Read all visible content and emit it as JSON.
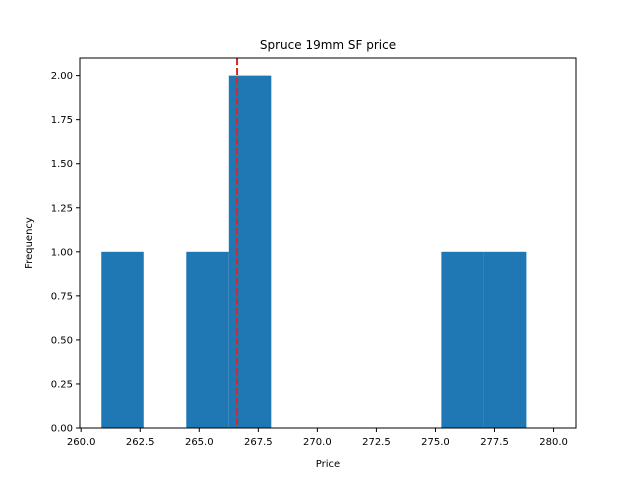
{
  "chart_data": {
    "type": "bar",
    "title": "Spruce 19mm SF price",
    "xlabel": "Price",
    "ylabel": "Frequency",
    "xlim": [
      259.95,
      280.95
    ],
    "ylim": [
      0,
      2.1
    ],
    "bins": [
      {
        "x0": 260.85,
        "x1": 262.65,
        "count": 1
      },
      {
        "x0": 262.65,
        "x1": 264.45,
        "count": 0
      },
      {
        "x0": 264.45,
        "x1": 266.25,
        "count": 1
      },
      {
        "x0": 266.25,
        "x1": 268.05,
        "count": 2
      },
      {
        "x0": 268.05,
        "x1": 269.85,
        "count": 0
      },
      {
        "x0": 269.85,
        "x1": 271.65,
        "count": 0
      },
      {
        "x0": 271.65,
        "x1": 273.45,
        "count": 0
      },
      {
        "x0": 273.45,
        "x1": 275.25,
        "count": 0
      },
      {
        "x0": 275.25,
        "x1": 277.05,
        "count": 1
      },
      {
        "x0": 277.05,
        "x1": 278.85,
        "count": 1
      }
    ],
    "xticks": [
      260.0,
      262.5,
      265.0,
      267.5,
      270.0,
      272.5,
      275.0,
      277.5,
      280.0
    ],
    "xtick_labels": [
      "260.0",
      "262.5",
      "265.0",
      "267.5",
      "270.0",
      "272.5",
      "275.0",
      "277.5",
      "280.0"
    ],
    "yticks": [
      0,
      0.25,
      0.5,
      0.75,
      1.0,
      1.25,
      1.5,
      1.75,
      2.0
    ],
    "ytick_labels": [
      "0.00",
      "0.25",
      "0.50",
      "0.75",
      "1.00",
      "1.25",
      "1.50",
      "1.75",
      "2.00"
    ],
    "reference_line": {
      "x": 266.6,
      "color": "#d62728",
      "style": "dashed"
    },
    "bar_color": "#1f77b4",
    "grid": false
  }
}
